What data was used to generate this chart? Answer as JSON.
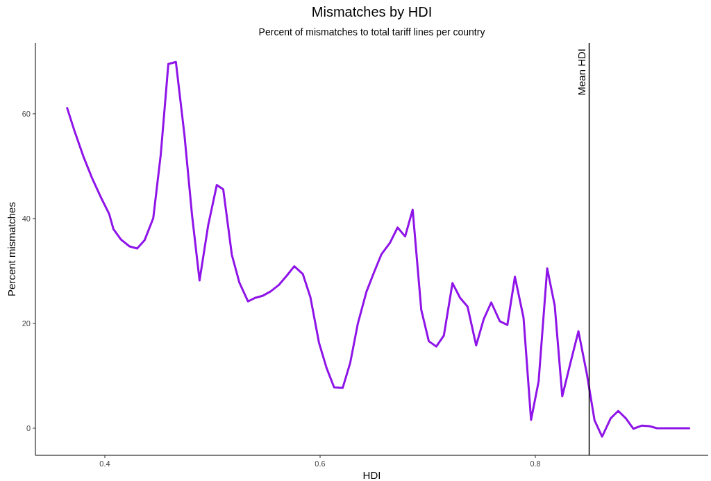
{
  "chart_data": {
    "type": "line",
    "title": "Mismatches by HDI",
    "subtitle": "Percent of mismatches to total tariff lines per country",
    "xlabel": "HDI",
    "ylabel": "Percent mismatches",
    "xlim": [
      0.3355,
      0.9606
    ],
    "xticks": [
      0.4,
      0.6,
      0.8
    ],
    "ylim": [
      -5.17,
      73.5
    ],
    "yticks": [
      0,
      20,
      40,
      60
    ],
    "grid": false,
    "line_style": "solid",
    "ref_lines": [
      {
        "axis": "x",
        "value": 0.85,
        "label": "Mean HDI",
        "color": "#000000"
      }
    ],
    "series": [
      {
        "color": "#8e14e8",
        "x": [
          0.365,
          0.372,
          0.38,
          0.388,
          0.396,
          0.404,
          0.408,
          0.415,
          0.423,
          0.43,
          0.437,
          0.445,
          0.452,
          0.459,
          0.466,
          0.474,
          0.481,
          0.488,
          0.496,
          0.504,
          0.51,
          0.518,
          0.525,
          0.533,
          0.54,
          0.547,
          0.554,
          0.562,
          0.569,
          0.576,
          0.584,
          0.591,
          0.599,
          0.606,
          0.613,
          0.621,
          0.628,
          0.635,
          0.643,
          0.65,
          0.657,
          0.665,
          0.672,
          0.679,
          0.686,
          0.694,
          0.701,
          0.708,
          0.715,
          0.723,
          0.73,
          0.737,
          0.745,
          0.752,
          0.759,
          0.767,
          0.774,
          0.781,
          0.789,
          0.796,
          0.803,
          0.811,
          0.818,
          0.825,
          0.833,
          0.84,
          0.848,
          0.855,
          0.862,
          0.87,
          0.877,
          0.884,
          0.891,
          0.899,
          0.906,
          0.913,
          0.921,
          0.943
        ],
        "values": [
          61.1,
          56.6,
          51.9,
          47.8,
          44.2,
          40.9,
          38.0,
          36.0,
          34.7,
          34.3,
          35.9,
          40.1,
          52.3,
          69.5,
          69.9,
          55.9,
          40.7,
          28.2,
          38.7,
          46.4,
          45.6,
          33.1,
          27.8,
          24.2,
          24.9,
          25.3,
          26.1,
          27.4,
          29.1,
          30.9,
          29.4,
          25.0,
          16.3,
          11.5,
          7.8,
          7.7,
          12.5,
          19.9,
          26.0,
          29.7,
          33.2,
          35.4,
          38.3,
          36.6,
          41.7,
          22.6,
          16.6,
          15.6,
          17.7,
          27.7,
          24.9,
          23.2,
          15.8,
          20.8,
          24.0,
          20.4,
          19.7,
          28.9,
          21.1,
          1.6,
          8.9,
          30.5,
          23.4,
          6.1,
          12.8,
          18.5,
          10.2,
          1.5,
          -1.6,
          1.9,
          3.3,
          1.9,
          -0.1,
          0.5,
          0.4,
          0.0,
          0.0,
          0.0
        ]
      }
    ]
  }
}
